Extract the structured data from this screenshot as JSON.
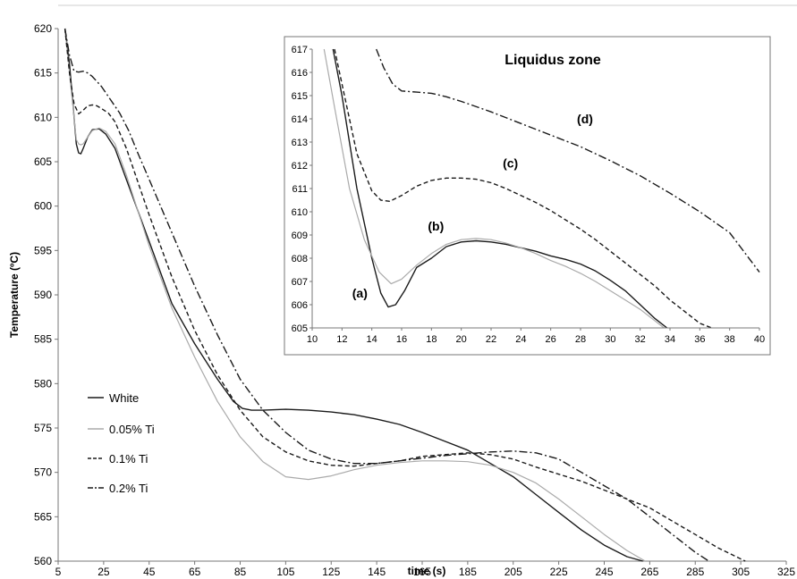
{
  "chart_data": [
    {
      "type": "line",
      "title": "",
      "xlabel": "time (s)",
      "ylabel": "Temperature (ºC)",
      "xlim": [
        5,
        325
      ],
      "ylim": [
        560,
        620
      ],
      "xticks": [
        "5",
        "25",
        "45",
        "65",
        "85",
        "105",
        "125",
        "145",
        "165",
        "185",
        "205",
        "225",
        "245",
        "265",
        "285",
        "305",
        "325"
      ],
      "yticks": [
        "560",
        "565",
        "570",
        "575",
        "580",
        "585",
        "590",
        "595",
        "600",
        "605",
        "610",
        "615",
        "620"
      ],
      "grid": false,
      "legend": "bottom-left",
      "series": [
        {
          "name": "White",
          "style": "solid",
          "color": "#1a1a1a",
          "x": [
            8,
            10,
            12,
            13,
            14,
            15,
            16,
            18,
            20,
            23,
            26,
            30,
            35,
            45,
            55,
            65,
            75,
            82,
            86,
            90,
            95,
            105,
            115,
            125,
            135,
            145,
            155,
            165,
            175,
            185,
            195,
            205,
            215,
            225,
            235,
            245,
            255,
            262
          ],
          "y": [
            620,
            616,
            610,
            607,
            606,
            605.9,
            606.5,
            607.8,
            608.6,
            608.7,
            608.1,
            606.5,
            603,
            596,
            589,
            584.5,
            580.5,
            578,
            577.2,
            577,
            577,
            577.1,
            577,
            576.8,
            576.5,
            576,
            575.4,
            574.5,
            573.5,
            572.5,
            571,
            569.5,
            567.5,
            565.5,
            563.5,
            561.8,
            560.5,
            560
          ]
        },
        {
          "name": "0.05% Ti",
          "style": "solid",
          "color": "#aaaaaa",
          "x": [
            8,
            10,
            12,
            13,
            14,
            15,
            16,
            18,
            20,
            23,
            26,
            30,
            35,
            45,
            55,
            65,
            75,
            85,
            95,
            105,
            115,
            125,
            135,
            145,
            155,
            165,
            175,
            185,
            195,
            205,
            215,
            225,
            235,
            245,
            255,
            263
          ],
          "y": [
            620,
            615,
            610,
            607.5,
            607,
            606.9,
            607,
            607.8,
            608.5,
            608.8,
            608.4,
            607,
            603.5,
            595.5,
            588.5,
            583,
            578,
            574,
            571.2,
            569.5,
            569.2,
            569.6,
            570.3,
            570.8,
            571.1,
            571.3,
            571.3,
            571.2,
            570.8,
            570,
            568.8,
            567,
            565,
            563,
            561.2,
            560
          ]
        },
        {
          "name": "0.1% Ti",
          "style": "dashed",
          "color": "#1a1a1a",
          "x": [
            8,
            10,
            12,
            14,
            16,
            18,
            20,
            22,
            24,
            27,
            30,
            35,
            45,
            55,
            65,
            75,
            85,
            95,
            105,
            115,
            125,
            135,
            145,
            155,
            165,
            175,
            185,
            195,
            205,
            215,
            225,
            235,
            245,
            255,
            265,
            275,
            285,
            295,
            307
          ],
          "y": [
            620,
            615,
            611.5,
            610.4,
            610.8,
            611.3,
            611.4,
            611.3,
            611,
            610.5,
            609.5,
            606.5,
            599,
            592,
            586,
            581,
            577,
            574,
            572.3,
            571.3,
            570.8,
            570.7,
            571,
            571.3,
            571.8,
            572,
            572.2,
            572,
            571.5,
            570.6,
            569.8,
            569,
            568,
            567,
            566,
            564.5,
            563,
            561.5,
            560
          ]
        },
        {
          "name": "0.2% Ti",
          "style": "dash-dot",
          "color": "#1a1a1a",
          "x": [
            8,
            10,
            12,
            14,
            16,
            18,
            20,
            24,
            28,
            32,
            36,
            40,
            45,
            55,
            65,
            75,
            85,
            95,
            105,
            115,
            125,
            135,
            145,
            155,
            165,
            175,
            185,
            195,
            205,
            215,
            225,
            235,
            245,
            255,
            265,
            275,
            285,
            291
          ],
          "y": [
            620,
            617,
            615.2,
            615.1,
            615.2,
            615,
            614.6,
            613.5,
            612,
            610.5,
            608.5,
            606,
            603,
            597,
            591,
            585.5,
            580.5,
            577,
            574.5,
            572.5,
            571.5,
            571,
            571,
            571.3,
            571.6,
            571.9,
            572.1,
            572.3,
            572.4,
            572.2,
            571.5,
            570,
            568.5,
            567,
            565,
            563,
            561,
            560
          ]
        }
      ]
    },
    {
      "type": "line",
      "title": "Liquidus zone",
      "xlabel": "",
      "ylabel": "",
      "xlim": [
        10,
        40
      ],
      "ylim": [
        605,
        617
      ],
      "xticks": [
        "10",
        "12",
        "14",
        "16",
        "18",
        "20",
        "22",
        "24",
        "26",
        "28",
        "30",
        "32",
        "34",
        "36",
        "38",
        "40"
      ],
      "yticks": [
        "605",
        "606",
        "607",
        "608",
        "609",
        "610",
        "611",
        "612",
        "613",
        "614",
        "615",
        "616",
        "617"
      ],
      "grid": false,
      "annotations": [
        {
          "text": "(a)",
          "x": 13.2,
          "y": 606.3
        },
        {
          "text": "(b)",
          "x": 18.3,
          "y": 609.2
        },
        {
          "text": "(c)",
          "x": 23.3,
          "y": 611.9
        },
        {
          "text": "(d)",
          "x": 28.3,
          "y": 613.8
        }
      ],
      "series": [
        {
          "name": "(a)",
          "style": "solid",
          "color": "#1a1a1a",
          "x": [
            11.4,
            12,
            13,
            14,
            14.6,
            15.1,
            15.6,
            16.2,
            17,
            18,
            19,
            20,
            21,
            22,
            23,
            24,
            25,
            26,
            27,
            28,
            29,
            30,
            31,
            32,
            33,
            33.8
          ],
          "y": [
            617,
            615,
            611,
            608,
            606.5,
            605.9,
            606,
            606.6,
            607.6,
            608,
            608.5,
            608.7,
            608.75,
            608.7,
            608.6,
            608.45,
            608.3,
            608.1,
            607.95,
            607.75,
            607.45,
            607.05,
            606.6,
            606,
            605.4,
            605
          ]
        },
        {
          "name": "(b)",
          "style": "solid",
          "color": "#aaaaaa",
          "x": [
            10.8,
            11.5,
            12.5,
            13.5,
            14.5,
            15.3,
            16,
            17,
            18,
            19,
            20,
            21,
            22,
            23,
            24,
            25,
            26,
            27,
            28,
            29,
            30,
            31,
            32,
            33,
            33.6
          ],
          "y": [
            617,
            614.5,
            611,
            608.8,
            607.4,
            606.9,
            607.1,
            607.7,
            608.2,
            608.6,
            608.8,
            608.85,
            608.8,
            608.65,
            608.45,
            608.2,
            607.9,
            607.65,
            607.35,
            607,
            606.6,
            606.2,
            605.8,
            605.3,
            605
          ]
        },
        {
          "name": "(c)",
          "style": "dashed",
          "color": "#1a1a1a",
          "x": [
            11.5,
            12,
            13,
            14,
            14.6,
            15.2,
            16,
            17,
            18,
            19,
            20,
            21,
            22,
            23,
            24,
            25,
            26,
            27,
            28,
            29,
            30,
            31,
            32,
            33,
            34,
            35,
            36,
            36.8
          ],
          "y": [
            617,
            615.5,
            612.5,
            610.9,
            610.5,
            610.45,
            610.7,
            611.1,
            611.35,
            611.45,
            611.45,
            611.4,
            611.25,
            611,
            610.7,
            610.4,
            610.05,
            609.65,
            609.25,
            608.8,
            608.3,
            607.8,
            607.3,
            606.8,
            606.2,
            605.7,
            605.2,
            605
          ]
        },
        {
          "name": "(d)",
          "style": "dash-dot",
          "color": "#1a1a1a",
          "x": [
            14.3,
            14.8,
            15.4,
            16,
            17,
            18,
            19,
            20,
            22,
            24,
            26,
            28,
            30,
            32,
            34,
            36,
            38,
            40
          ],
          "y": [
            617,
            616.2,
            615.5,
            615.2,
            615.15,
            615.1,
            614.95,
            614.75,
            614.3,
            613.8,
            613.3,
            612.8,
            612.2,
            611.55,
            610.8,
            610,
            609.1,
            607.4
          ]
        }
      ]
    }
  ]
}
